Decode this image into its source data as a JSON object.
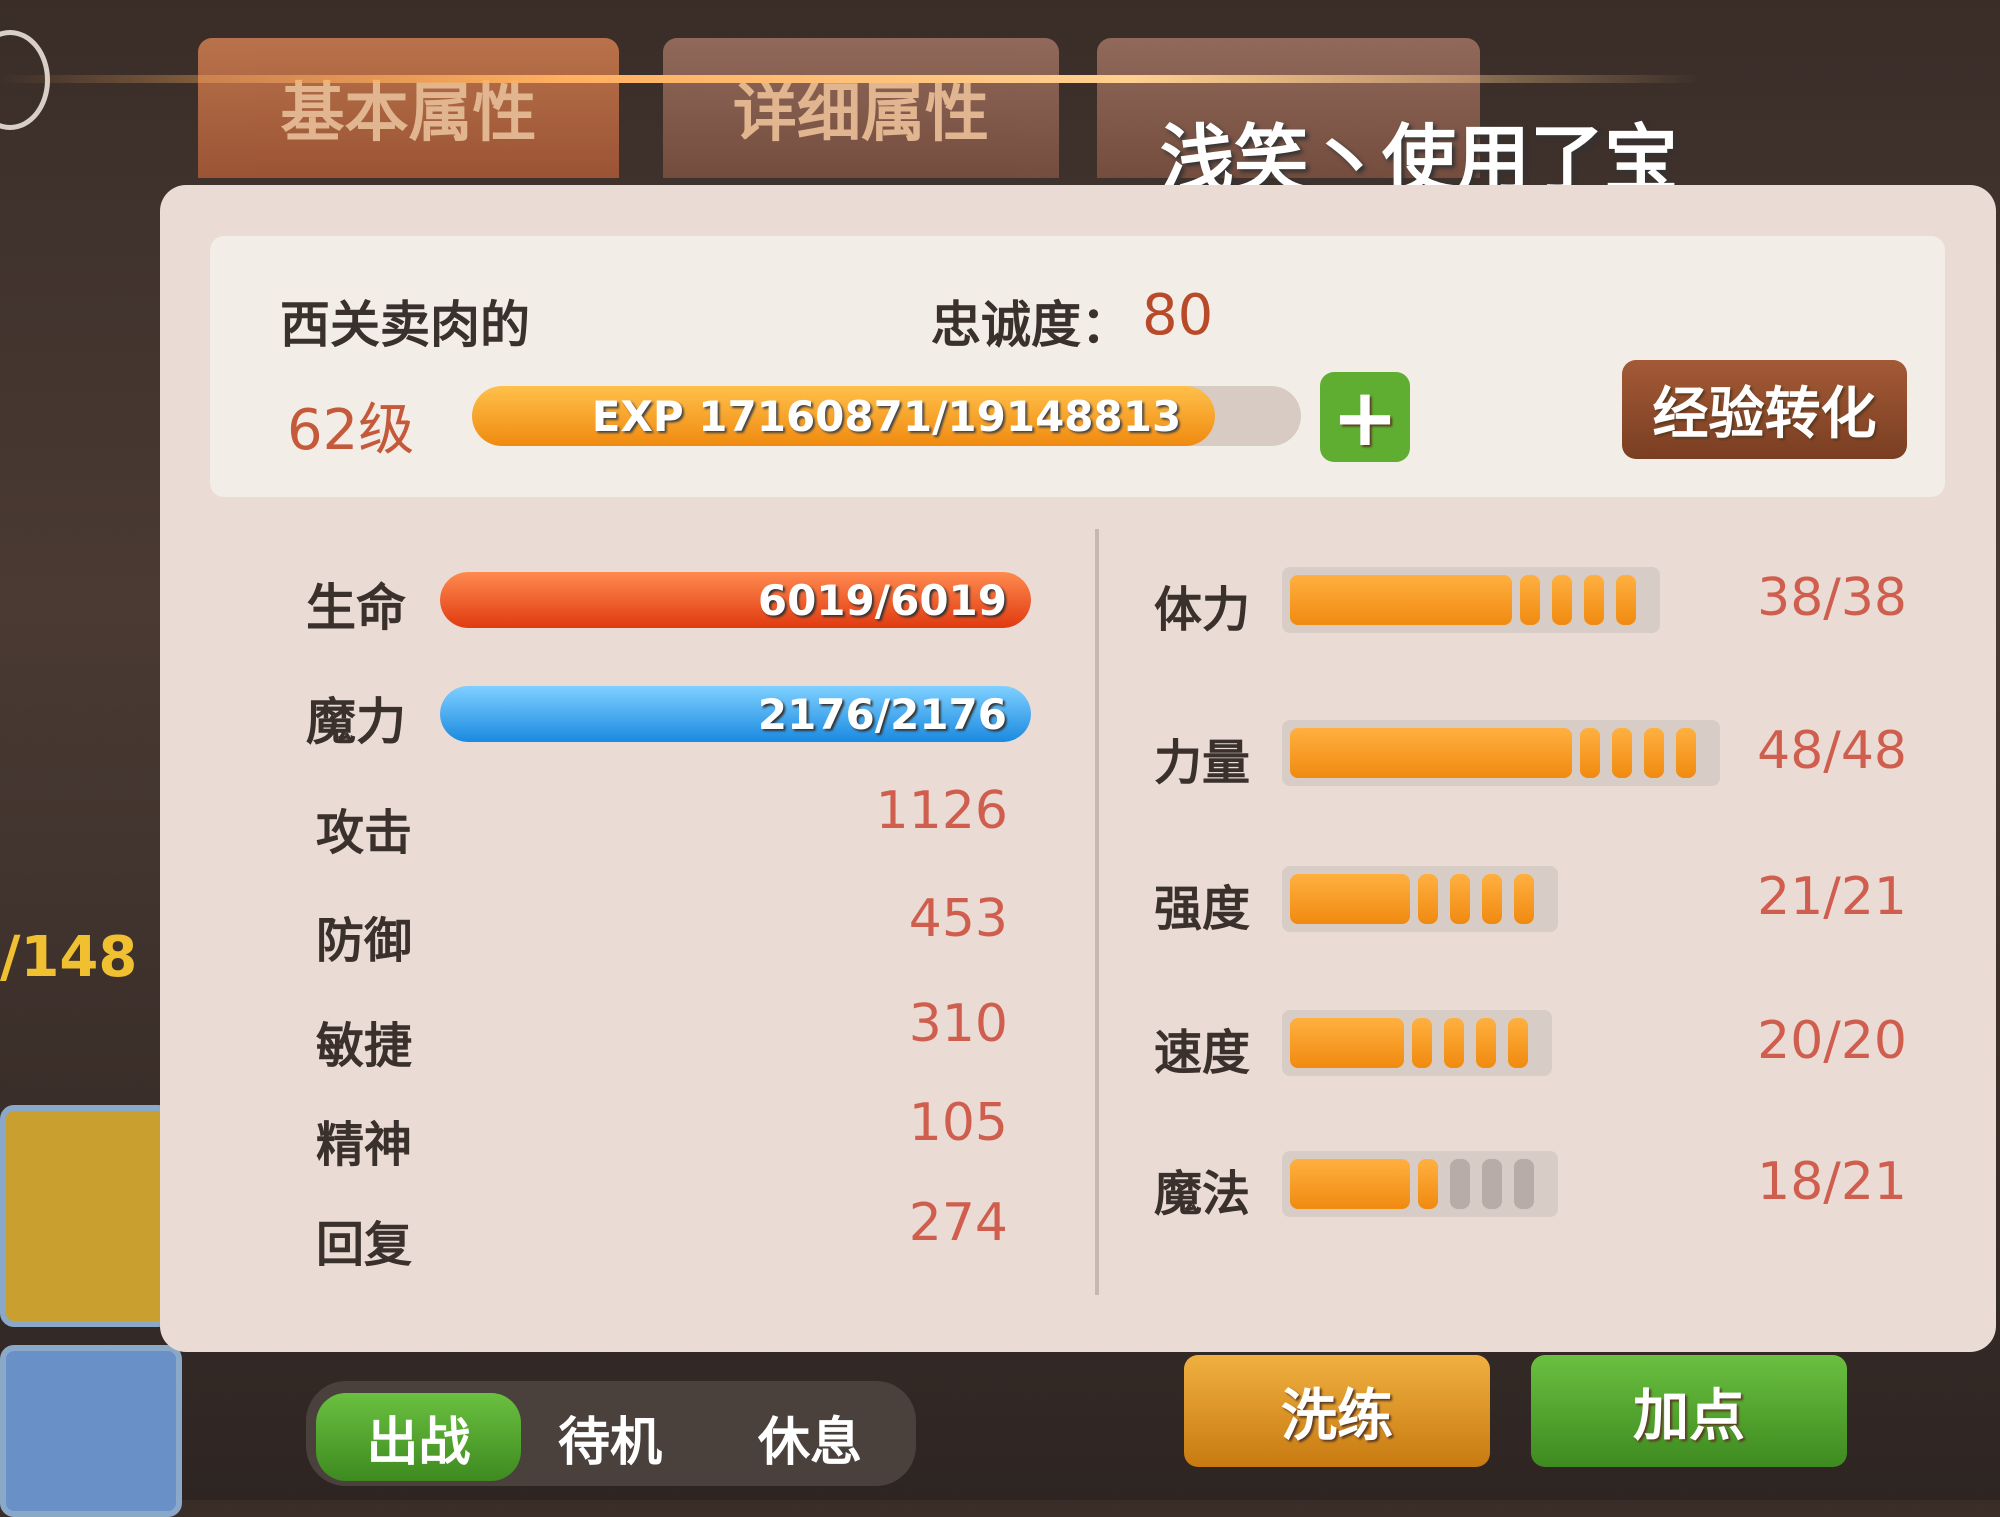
{
  "tabs": [
    "基本属性",
    "详细属性"
  ],
  "chat_overlay": "浅笑丶使用了宝",
  "side_count": "/148",
  "pet": {
    "name": "西关卖肉的",
    "loyalty_label": "忠诚度：",
    "loyalty": 80,
    "level": "62级",
    "exp": "EXP 17160871/19148813",
    "convert_button": "经验转化"
  },
  "bars": [
    {
      "label": "生命",
      "value": "6019/6019"
    },
    {
      "label": "魔力",
      "value": "2176/2176"
    }
  ],
  "stats": [
    {
      "label": "攻击",
      "value": 1126
    },
    {
      "label": "防御",
      "value": 453
    },
    {
      "label": "敏捷",
      "value": 310
    },
    {
      "label": "精神",
      "value": 105
    },
    {
      "label": "回复",
      "value": 274
    }
  ],
  "attributes": [
    {
      "label": "体力",
      "value": "38/38"
    },
    {
      "label": "力量",
      "value": "48/48"
    },
    {
      "label": "强度",
      "value": "21/21"
    },
    {
      "label": "速度",
      "value": "20/20"
    },
    {
      "label": "魔法",
      "value": "18/21"
    }
  ],
  "status_toggle": [
    "出战",
    "待机",
    "休息"
  ],
  "buttons": [
    "洗练",
    "加点"
  ]
}
